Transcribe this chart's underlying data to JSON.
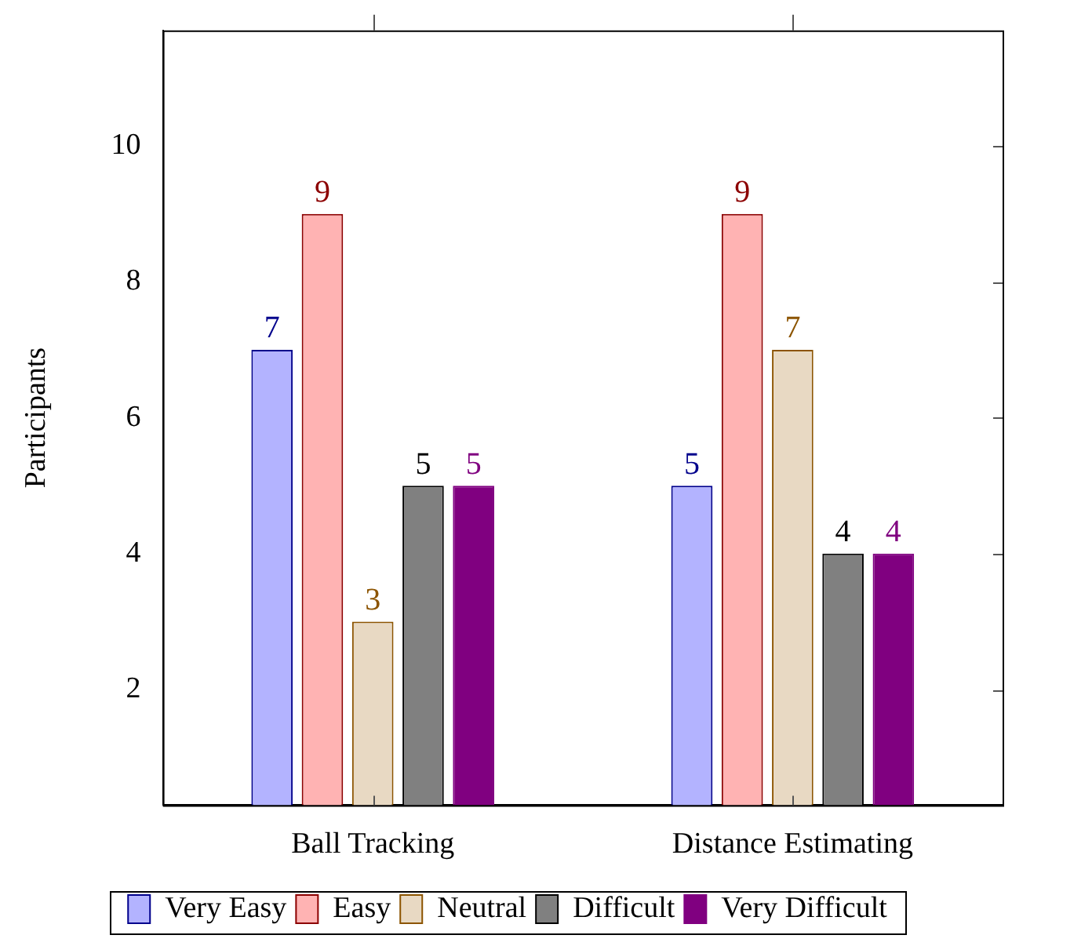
{
  "chart_data": {
    "type": "bar",
    "ylabel": "Participants",
    "categories": [
      "Ball Tracking",
      "Distance Estimating"
    ],
    "series": [
      {
        "name": "Very Easy",
        "color": "#b3b3ff",
        "values": [
          7,
          5
        ]
      },
      {
        "name": "Easy",
        "color": "#ffb3b3",
        "values": [
          9,
          9
        ]
      },
      {
        "name": "Neutral",
        "color": "#e8d9c3",
        "values": [
          3,
          7
        ]
      },
      {
        "name": "Difficult",
        "color": "#808080",
        "values": [
          5,
          4
        ]
      },
      {
        "name": "Very Difficult",
        "color": "#800080",
        "values": [
          5,
          4
        ]
      }
    ],
    "ylim": [
      0.3,
      11.7
    ],
    "yticks": [
      2,
      4,
      6,
      8,
      10
    ],
    "grid": false,
    "legend": "bottom",
    "data_labels": true
  }
}
